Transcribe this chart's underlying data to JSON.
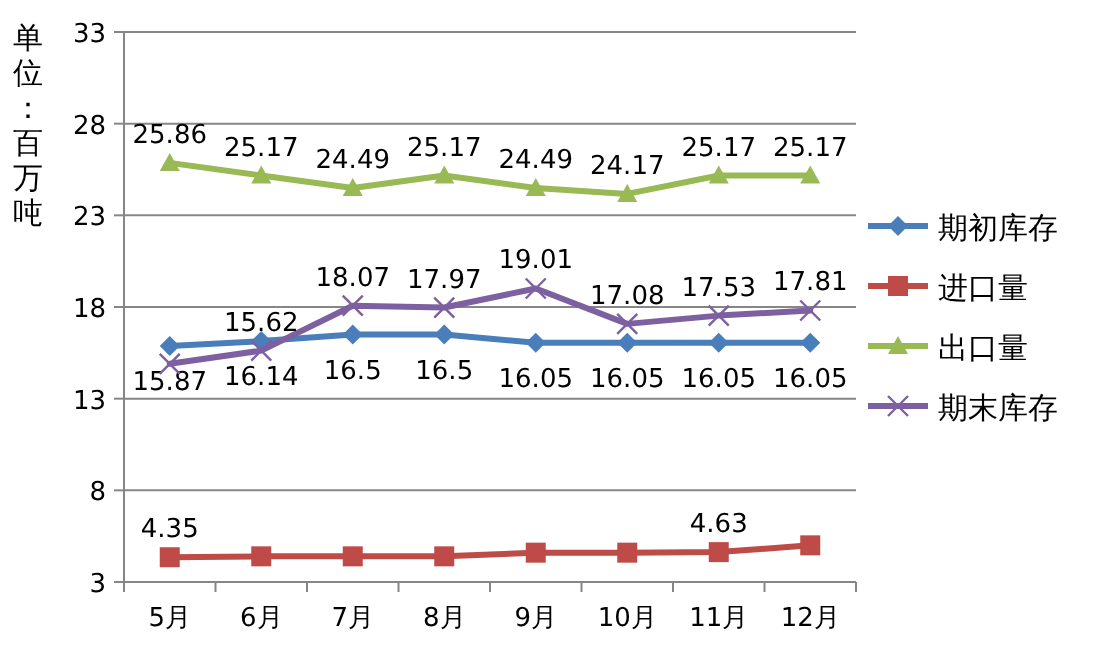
{
  "chart_data": {
    "type": "line",
    "ylabel": "单位：百万吨",
    "categories": [
      "5月",
      "6月",
      "7月",
      "8月",
      "9月",
      "10月",
      "11月",
      "12月"
    ],
    "ylim": [
      3,
      33
    ],
    "yticks": [
      3,
      8,
      13,
      18,
      23,
      28,
      33
    ],
    "grid": "y",
    "legend": "right",
    "series": [
      {
        "name": "期初库存",
        "color": "#4a7ebb",
        "marker": "diamond",
        "values": [
          15.87,
          16.14,
          16.5,
          16.5,
          16.05,
          16.05,
          16.05,
          16.05
        ],
        "value_labels": [
          "15.87",
          "16.14",
          "16.5",
          "16.5",
          "16.05",
          "16.05",
          "16.05",
          "16.05"
        ]
      },
      {
        "name": "进口量",
        "color": "#be4b48",
        "marker": "square",
        "values": [
          4.35,
          4.4,
          4.4,
          4.4,
          4.6,
          4.6,
          4.63,
          5.0
        ],
        "value_labels": [
          "4.35",
          null,
          null,
          null,
          null,
          null,
          "4.63",
          null
        ]
      },
      {
        "name": "出口量",
        "color": "#98b954",
        "marker": "triangle",
        "values": [
          25.86,
          25.17,
          24.49,
          25.17,
          24.49,
          24.17,
          25.17,
          25.17
        ],
        "value_labels": [
          "25.86",
          "25.17",
          "24.49",
          "25.17",
          "24.49",
          "24.17",
          "25.17",
          "25.17"
        ]
      },
      {
        "name": "期末库存",
        "color": "#7d60a0",
        "marker": "cross",
        "values": [
          14.9,
          15.62,
          18.07,
          17.97,
          19.01,
          17.08,
          17.53,
          17.81
        ],
        "value_labels": [
          null,
          "15.62",
          "18.07",
          "17.97",
          "19.01",
          "17.08",
          "17.53",
          "17.81"
        ]
      }
    ]
  }
}
